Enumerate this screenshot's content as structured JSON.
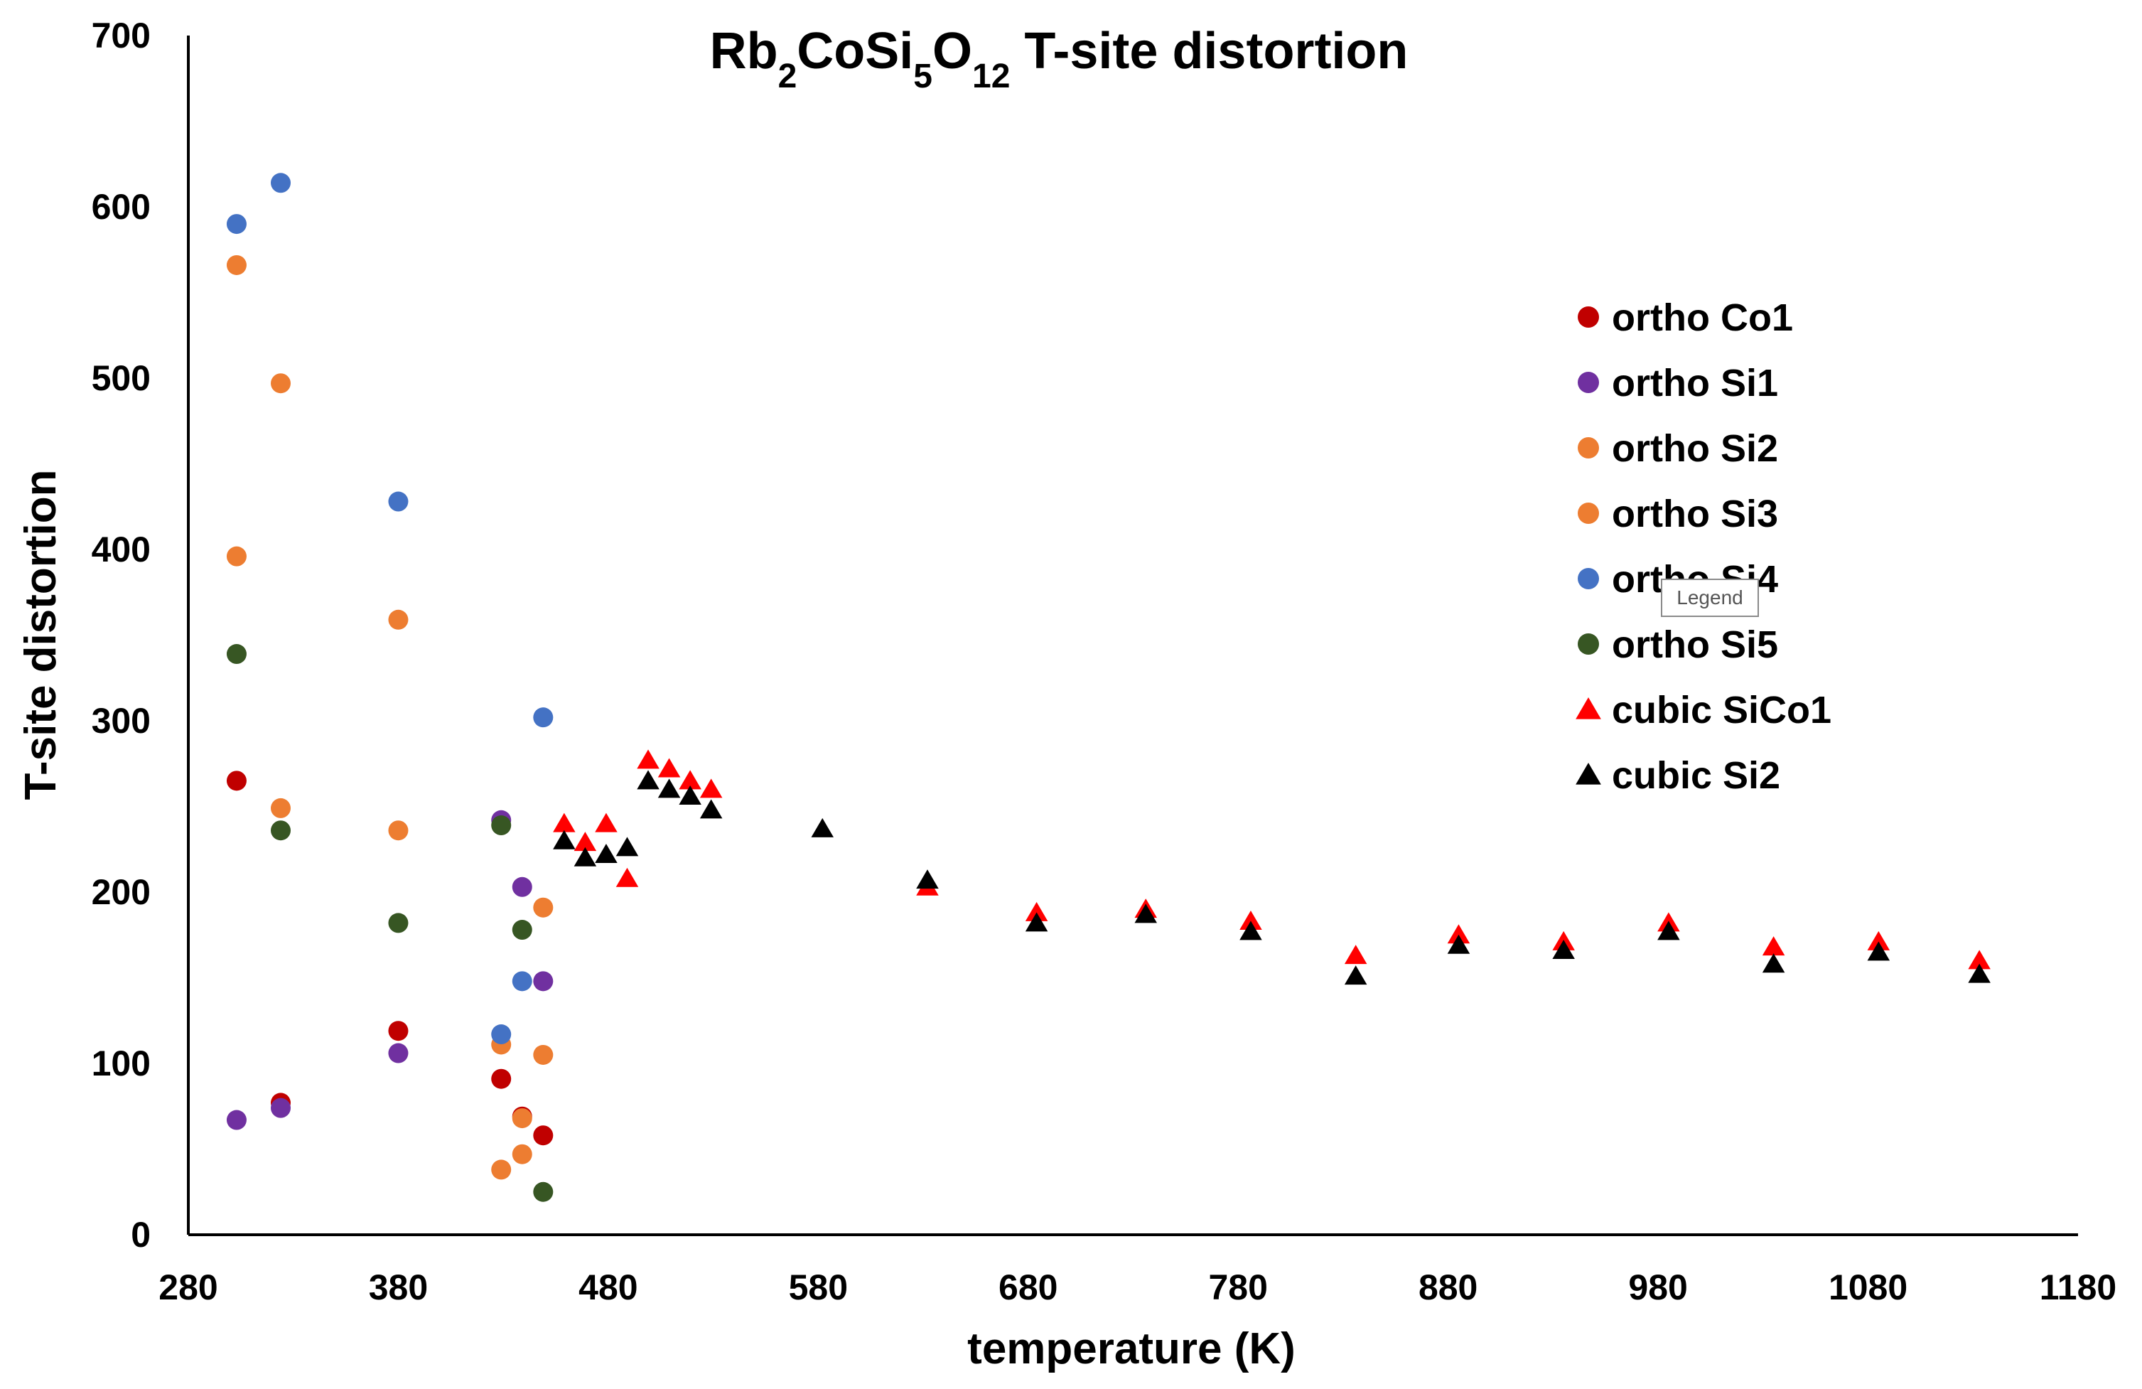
{
  "chart_data": {
    "type": "scatter",
    "title": {
      "prefix": "Rb",
      "s1": "2",
      "mid1": "CoSi",
      "s2": "5",
      "mid2": "O",
      "s3": "12",
      "suffix": " T-site distortion"
    },
    "xlabel": "temperature (K)",
    "ylabel": "T-site distortion",
    "xlim": [
      280,
      1180
    ],
    "ylim": [
      0,
      700
    ],
    "xticks": [
      280,
      380,
      480,
      580,
      680,
      780,
      880,
      980,
      1080,
      1180
    ],
    "yticks": [
      0,
      100,
      200,
      300,
      400,
      500,
      600,
      700
    ],
    "grid": false,
    "legend_position": "right",
    "tooltip": "Legend",
    "series": [
      {
        "name": "ortho Co1",
        "marker": "circle",
        "color": "#C00000",
        "points": [
          [
            303,
            265
          ],
          [
            324,
            77
          ],
          [
            380,
            119
          ],
          [
            429,
            91
          ],
          [
            439,
            69
          ],
          [
            449,
            58
          ]
        ]
      },
      {
        "name": "ortho Si1",
        "marker": "circle",
        "color": "#7030A0",
        "points": [
          [
            303,
            67
          ],
          [
            324,
            74
          ],
          [
            380,
            106
          ],
          [
            429,
            242
          ],
          [
            439,
            203
          ],
          [
            449,
            148
          ]
        ]
      },
      {
        "name": "ortho Si2",
        "marker": "circle",
        "color": "#ED7D31",
        "points": [
          [
            303,
            566
          ],
          [
            324,
            497
          ],
          [
            380,
            359
          ],
          [
            429,
            111
          ],
          [
            439,
            68
          ],
          [
            449,
            191
          ]
        ]
      },
      {
        "name": "ortho Si3",
        "marker": "circle",
        "color": "#ED7D31",
        "points": [
          [
            303,
            396
          ],
          [
            324,
            249
          ],
          [
            380,
            236
          ],
          [
            429,
            38
          ],
          [
            439,
            47
          ],
          [
            449,
            105
          ]
        ]
      },
      {
        "name": "ortho Si4",
        "marker": "circle",
        "color": "#4472C4",
        "points": [
          [
            303,
            590
          ],
          [
            324,
            614
          ],
          [
            380,
            428
          ],
          [
            429,
            117
          ],
          [
            439,
            148
          ],
          [
            449,
            302
          ]
        ]
      },
      {
        "name": "ortho Si5",
        "marker": "circle",
        "color": "#375623",
        "points": [
          [
            303,
            339
          ],
          [
            324,
            236
          ],
          [
            380,
            182
          ],
          [
            429,
            239
          ],
          [
            439,
            178
          ],
          [
            449,
            25
          ]
        ]
      },
      {
        "name": "cubic SiCo1",
        "marker": "triangle",
        "color": "#FF0000",
        "points": [
          [
            459,
            240
          ],
          [
            469,
            229
          ],
          [
            479,
            240
          ],
          [
            489,
            208
          ],
          [
            499,
            277
          ],
          [
            509,
            272
          ],
          [
            519,
            265
          ],
          [
            529,
            260
          ],
          [
            632,
            203
          ],
          [
            684,
            188
          ],
          [
            736,
            190
          ],
          [
            786,
            183
          ],
          [
            836,
            163
          ],
          [
            885,
            175
          ],
          [
            935,
            171
          ],
          [
            985,
            182
          ],
          [
            1035,
            168
          ],
          [
            1085,
            171
          ],
          [
            1133,
            160
          ]
        ]
      },
      {
        "name": "cubic Si2",
        "marker": "triangle",
        "color": "#000000",
        "points": [
          [
            459,
            230
          ],
          [
            469,
            220
          ],
          [
            479,
            222
          ],
          [
            489,
            226
          ],
          [
            499,
            265
          ],
          [
            509,
            260
          ],
          [
            519,
            256
          ],
          [
            529,
            248
          ],
          [
            582,
            237
          ],
          [
            632,
            207
          ],
          [
            684,
            182
          ],
          [
            736,
            187
          ],
          [
            786,
            177
          ],
          [
            836,
            151
          ],
          [
            885,
            169
          ],
          [
            935,
            166
          ],
          [
            985,
            177
          ],
          [
            1035,
            158
          ],
          [
            1085,
            165
          ],
          [
            1133,
            152
          ]
        ]
      }
    ]
  }
}
